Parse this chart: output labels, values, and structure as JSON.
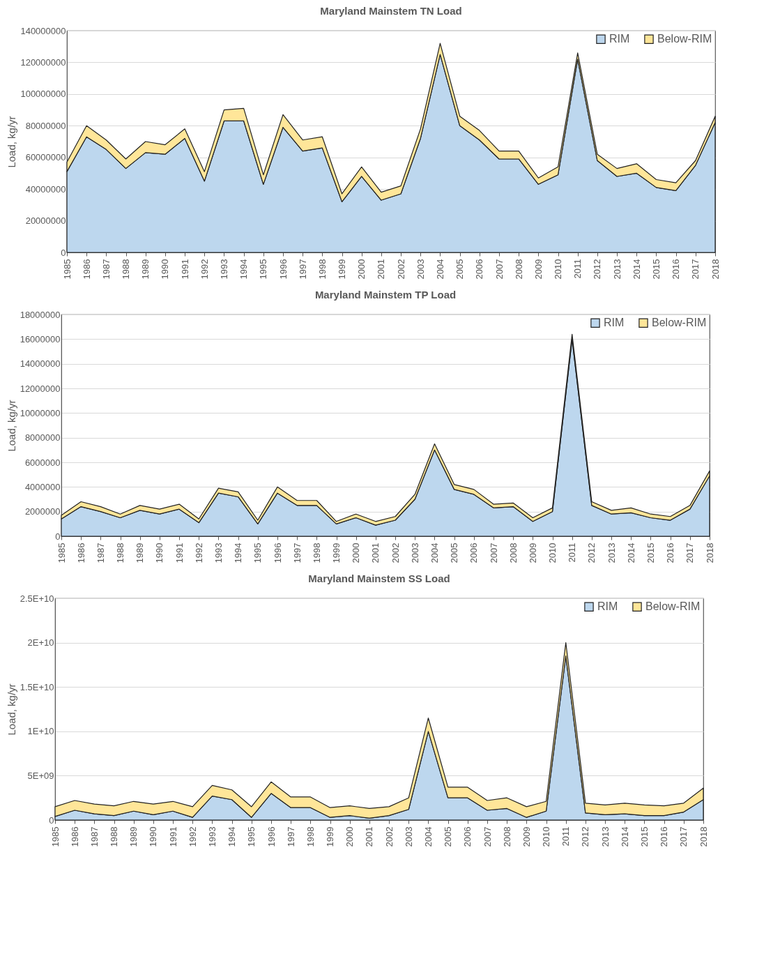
{
  "chart_data": [
    {
      "type": "area",
      "title": "Maryland Mainstem TN Load",
      "ylabel": "Load, kg/yr",
      "stacked": true,
      "grid": "y",
      "legend": "top right",
      "categories": [
        "1985",
        "1986",
        "1987",
        "1988",
        "1989",
        "1990",
        "1991",
        "1992",
        "1993",
        "1994",
        "1995",
        "1996",
        "1997",
        "1998",
        "1999",
        "2000",
        "2001",
        "2002",
        "2003",
        "2004",
        "2005",
        "2006",
        "2007",
        "2008",
        "2009",
        "2010",
        "2011",
        "2012",
        "2013",
        "2014",
        "2015",
        "2016",
        "2017",
        "2018"
      ],
      "ylim": [
        0,
        140000000
      ],
      "yticks": [
        0,
        20000000,
        40000000,
        60000000,
        80000000,
        100000000,
        120000000,
        140000000
      ],
      "series": [
        {
          "name": "RIM",
          "color": "#bdd7ee",
          "values": [
            51000000,
            73000000,
            65000000,
            53000000,
            63000000,
            62000000,
            72000000,
            45000000,
            83000000,
            83000000,
            43000000,
            79000000,
            64000000,
            66000000,
            32000000,
            48000000,
            33000000,
            37000000,
            72000000,
            125000000,
            80000000,
            71000000,
            59000000,
            59000000,
            43000000,
            49000000,
            122000000,
            58000000,
            48000000,
            50000000,
            41000000,
            39000000,
            55000000,
            82000000
          ]
        },
        {
          "name": "Below-RIM",
          "color": "#ffe699",
          "values": [
            6000000,
            7000000,
            6000000,
            6000000,
            7000000,
            6000000,
            6000000,
            6000000,
            7000000,
            8000000,
            6000000,
            8000000,
            7000000,
            7000000,
            5000000,
            6000000,
            5000000,
            5000000,
            6000000,
            7000000,
            6000000,
            6000000,
            5000000,
            5000000,
            4000000,
            5000000,
            4000000,
            4000000,
            5000000,
            6000000,
            5000000,
            5000000,
            3000000,
            4000000
          ]
        }
      ]
    },
    {
      "type": "area",
      "title": "Maryland Mainstem TP Load",
      "ylabel": "Load, kg/yr",
      "stacked": true,
      "grid": "y",
      "legend": "top right",
      "categories": [
        "1985",
        "1986",
        "1987",
        "1988",
        "1989",
        "1990",
        "1991",
        "1992",
        "1993",
        "1994",
        "1995",
        "1996",
        "1997",
        "1998",
        "1999",
        "2000",
        "2001",
        "2002",
        "2003",
        "2004",
        "2005",
        "2006",
        "2007",
        "2008",
        "2009",
        "2010",
        "2011",
        "2012",
        "2013",
        "2014",
        "2015",
        "2016",
        "2017",
        "2018"
      ],
      "ylim": [
        0,
        18000000
      ],
      "yticks": [
        0,
        2000000,
        4000000,
        6000000,
        8000000,
        10000000,
        12000000,
        14000000,
        16000000,
        18000000
      ],
      "series": [
        {
          "name": "RIM",
          "color": "#bdd7ee",
          "values": [
            1400000,
            2400000,
            2000000,
            1500000,
            2100000,
            1800000,
            2200000,
            1100000,
            3500000,
            3200000,
            1000000,
            3500000,
            2500000,
            2500000,
            1000000,
            1500000,
            900000,
            1300000,
            3000000,
            7000000,
            3800000,
            3400000,
            2300000,
            2400000,
            1200000,
            2000000,
            16000000,
            2500000,
            1800000,
            1900000,
            1500000,
            1300000,
            2200000,
            4900000
          ]
        },
        {
          "name": "Below-RIM",
          "color": "#ffe699",
          "values": [
            300000,
            400000,
            400000,
            300000,
            400000,
            400000,
            400000,
            300000,
            400000,
            400000,
            300000,
            500000,
            400000,
            400000,
            200000,
            300000,
            300000,
            300000,
            400000,
            500000,
            400000,
            400000,
            300000,
            300000,
            300000,
            300000,
            400000,
            300000,
            300000,
            400000,
            300000,
            300000,
            300000,
            400000
          ]
        }
      ]
    },
    {
      "type": "area",
      "title": "Maryland Mainstem SS Load",
      "ylabel": "Load, kg/yr",
      "stacked": true,
      "grid": "y",
      "legend": "top right",
      "categories": [
        "1985",
        "1986",
        "1987",
        "1988",
        "1989",
        "1990",
        "1991",
        "1992",
        "1993",
        "1994",
        "1995",
        "1996",
        "1997",
        "1998",
        "1999",
        "2000",
        "2001",
        "2002",
        "2003",
        "2004",
        "2005",
        "2006",
        "2007",
        "2008",
        "2009",
        "2010",
        "2011",
        "2012",
        "2013",
        "2014",
        "2015",
        "2016",
        "2017",
        "2018"
      ],
      "ylim": [
        0,
        25000000000
      ],
      "yticks": [
        0,
        {
          "value": 5000000000,
          "label": "5E+09"
        },
        {
          "value": 10000000000,
          "label": "1E+10"
        },
        {
          "value": 15000000000,
          "label": "1.5E+10"
        },
        {
          "value": 20000000000,
          "label": "2E+10"
        },
        {
          "value": 25000000000,
          "label": "2.5E+10"
        }
      ],
      "series": [
        {
          "name": "RIM",
          "color": "#bdd7ee",
          "values": [
            400000000,
            1100000000,
            700000000,
            500000000,
            1000000000,
            600000000,
            1000000000,
            300000000,
            2700000000,
            2300000000,
            300000000,
            3000000000,
            1400000000,
            1400000000,
            300000000,
            500000000,
            200000000,
            500000000,
            1200000000,
            10000000000,
            2500000000,
            2500000000,
            1100000000,
            1300000000,
            300000000,
            1000000000,
            18500000000,
            800000000,
            600000000,
            700000000,
            500000000,
            500000000,
            900000000,
            2300000000
          ]
        },
        {
          "name": "Below-RIM",
          "color": "#ffe699",
          "values": [
            1100000000,
            1100000000,
            1100000000,
            1100000000,
            1100000000,
            1200000000,
            1100000000,
            1200000000,
            1200000000,
            1100000000,
            1200000000,
            1300000000,
            1200000000,
            1200000000,
            1100000000,
            1100000000,
            1100000000,
            1000000000,
            1300000000,
            1500000000,
            1200000000,
            1200000000,
            1100000000,
            1200000000,
            1200000000,
            1100000000,
            1500000000,
            1100000000,
            1100000000,
            1200000000,
            1200000000,
            1100000000,
            1000000000,
            1300000000
          ]
        }
      ]
    }
  ]
}
